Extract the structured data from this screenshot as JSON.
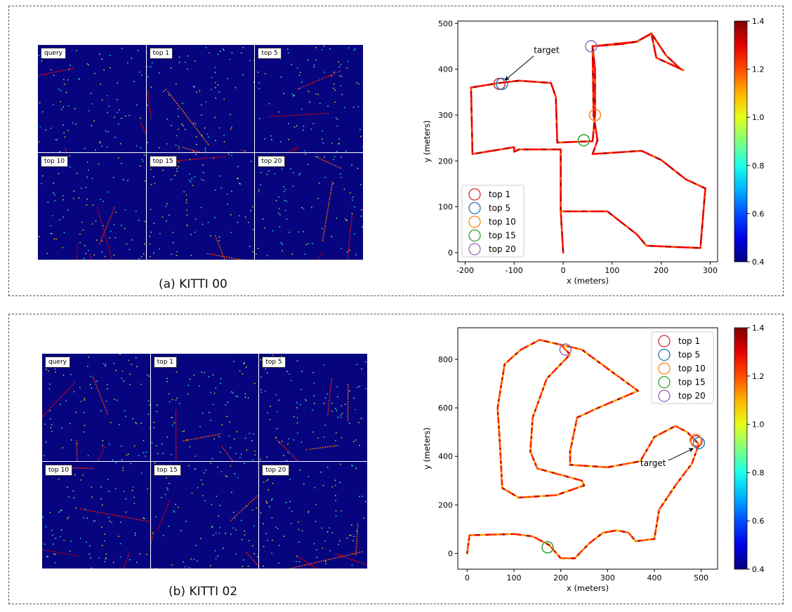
{
  "panels": [
    {
      "caption": "(a) KITTI 00",
      "scan_labels": [
        "query",
        "top 1",
        "top 5",
        "top 10",
        "top 15",
        "top 20"
      ]
    },
    {
      "caption": "(b) KITTI 02",
      "scan_labels": [
        "query",
        "top 1",
        "top 5",
        "top 10",
        "top 15",
        "top 20"
      ]
    }
  ],
  "chart_data": [
    {
      "type": "line",
      "xlabel": "x (meters)",
      "ylabel": "y (meters)",
      "xlim": [
        -215,
        315
      ],
      "ylim": [
        -20,
        505
      ],
      "xticks": [
        -200,
        -100,
        0,
        100,
        200,
        300
      ],
      "yticks": [
        0,
        100,
        200,
        300,
        400,
        500
      ],
      "colorbar": {
        "min": 0.4,
        "max": 1.4,
        "ticks": [
          0.4,
          0.6,
          0.8,
          1.0,
          1.2,
          1.4
        ],
        "colormap": "jet"
      },
      "annotation": {
        "text": "target",
        "text_xy": [
          -60,
          435
        ],
        "arrow_to": [
          -130,
          370
        ]
      },
      "legend_position": "bottom-left",
      "path": [
        [
          0,
          0
        ],
        [
          -5,
          90
        ],
        [
          -5,
          225
        ],
        [
          -90,
          225
        ],
        [
          -100,
          220
        ],
        [
          -100,
          230
        ],
        [
          -185,
          215
        ],
        [
          -188,
          360
        ],
        [
          -130,
          370
        ],
        [
          -90,
          375
        ],
        [
          -25,
          370
        ],
        [
          -15,
          340
        ],
        [
          -12,
          240
        ],
        [
          60,
          243
        ],
        [
          65,
          300
        ],
        [
          65,
          400
        ],
        [
          60,
          450
        ],
        [
          120,
          455
        ],
        [
          150,
          460
        ],
        [
          180,
          478
        ],
        [
          210,
          430
        ],
        [
          240,
          400
        ],
        [
          245,
          398
        ],
        [
          190,
          425
        ],
        [
          180,
          478
        ],
        [
          150,
          460
        ],
        [
          60,
          450
        ],
        [
          62,
          300
        ],
        [
          70,
          245
        ],
        [
          60,
          215
        ],
        [
          160,
          222
        ],
        [
          200,
          202
        ],
        [
          250,
          160
        ],
        [
          290,
          140
        ],
        [
          280,
          10
        ],
        [
          170,
          15
        ],
        [
          150,
          40
        ],
        [
          90,
          90
        ],
        [
          -5,
          90
        ]
      ],
      "match_circles": [
        {
          "name": "top 1",
          "x": -130,
          "y": 368,
          "color": "#d62728"
        },
        {
          "name": "top 5",
          "x": -125,
          "y": 368,
          "color": "#1f77b4"
        },
        {
          "name": "top 10",
          "x": 65,
          "y": 300,
          "color": "#ff7f0e"
        },
        {
          "name": "top 15",
          "x": 42,
          "y": 245,
          "color": "#2ca02c"
        },
        {
          "name": "top 20",
          "x": 57,
          "y": 450,
          "color": "#9467bd"
        }
      ],
      "legend": [
        "top 1",
        "top 5",
        "top 10",
        "top 15",
        "top 20"
      ]
    },
    {
      "type": "line",
      "xlabel": "x (meters)",
      "ylabel": "y (meters)",
      "xlim": [
        -20,
        535
      ],
      "ylim": [
        -65,
        930
      ],
      "xticks": [
        0,
        100,
        200,
        300,
        400,
        500
      ],
      "yticks": [
        0,
        200,
        400,
        600,
        800
      ],
      "colorbar": {
        "min": 0.4,
        "max": 1.4,
        "ticks": [
          0.4,
          0.6,
          0.8,
          1.0,
          1.2,
          1.4
        ],
        "colormap": "jet"
      },
      "annotation": {
        "text": "target",
        "text_xy": [
          370,
          360
        ],
        "arrow_to": [
          492,
          450
        ]
      },
      "legend_position": "top-right",
      "path": [
        [
          0,
          0
        ],
        [
          5,
          75
        ],
        [
          100,
          80
        ],
        [
          140,
          70
        ],
        [
          175,
          35
        ],
        [
          200,
          -20
        ],
        [
          230,
          -20
        ],
        [
          260,
          40
        ],
        [
          290,
          85
        ],
        [
          320,
          95
        ],
        [
          345,
          85
        ],
        [
          360,
          50
        ],
        [
          400,
          60
        ],
        [
          410,
          180
        ],
        [
          445,
          280
        ],
        [
          480,
          370
        ],
        [
          495,
          450
        ],
        [
          470,
          500
        ],
        [
          445,
          525
        ],
        [
          400,
          480
        ],
        [
          370,
          380
        ],
        [
          300,
          355
        ],
        [
          260,
          360
        ],
        [
          220,
          365
        ],
        [
          220,
          420
        ],
        [
          235,
          560
        ],
        [
          280,
          600
        ],
        [
          365,
          670
        ],
        [
          280,
          790
        ],
        [
          245,
          840
        ],
        [
          200,
          860
        ],
        [
          220,
          820
        ],
        [
          170,
          720
        ],
        [
          140,
          560
        ],
        [
          135,
          420
        ],
        [
          150,
          350
        ],
        [
          245,
          300
        ],
        [
          250,
          280
        ],
        [
          190,
          240
        ],
        [
          110,
          230
        ],
        [
          75,
          270
        ],
        [
          70,
          450
        ],
        [
          65,
          600
        ],
        [
          80,
          780
        ],
        [
          115,
          840
        ],
        [
          155,
          880
        ],
        [
          200,
          860
        ]
      ],
      "match_circles": [
        {
          "name": "top 1",
          "x": 490,
          "y": 462,
          "color": "#d62728"
        },
        {
          "name": "top 5",
          "x": 495,
          "y": 455,
          "color": "#1f77b4"
        },
        {
          "name": "top 10",
          "x": 488,
          "y": 468,
          "color": "#ff7f0e"
        },
        {
          "name": "top 15",
          "x": 172,
          "y": 25,
          "color": "#2ca02c"
        },
        {
          "name": "top 20",
          "x": 210,
          "y": 840,
          "color": "#9467bd"
        }
      ],
      "legend": [
        "top 1",
        "top 5",
        "top 10",
        "top 15",
        "top 20"
      ]
    }
  ]
}
